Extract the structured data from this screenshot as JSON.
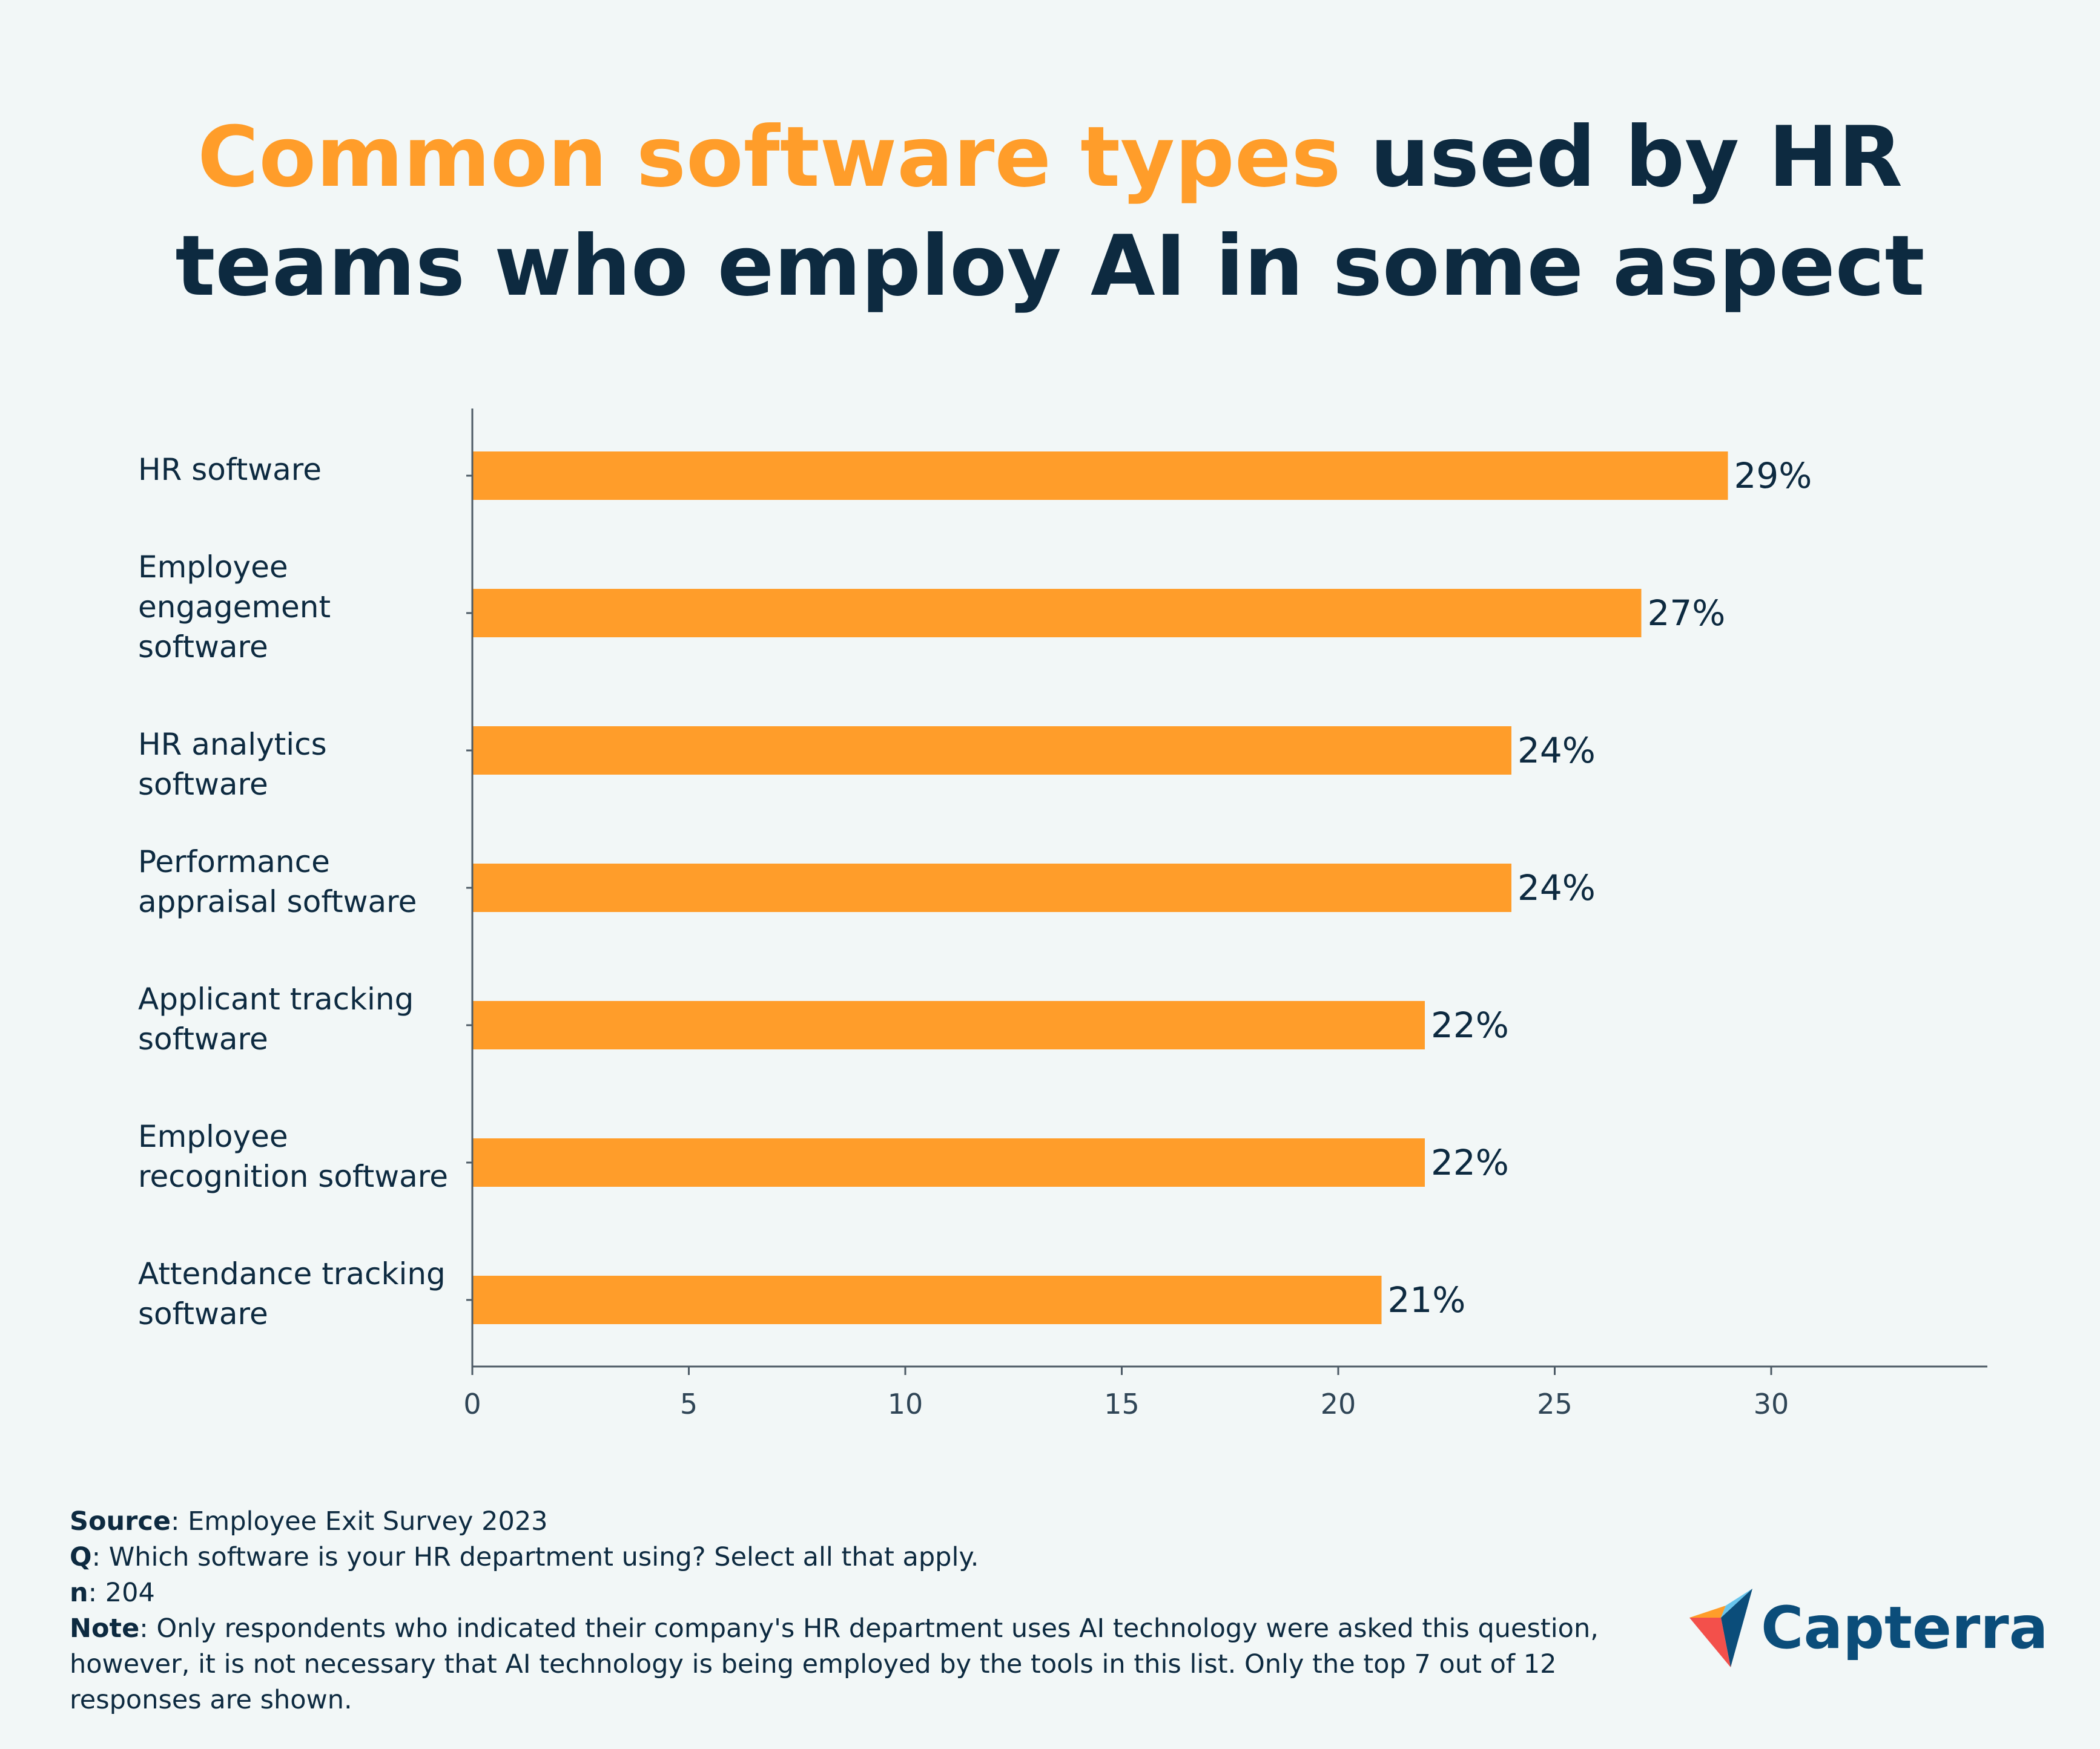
{
  "title": {
    "accent": "Common software types",
    "line1_rest": " used by HR",
    "line2": "teams who employ AI in some aspect"
  },
  "chart_data": {
    "type": "bar",
    "orientation": "horizontal",
    "categories": [
      "HR software",
      "Employee engagement software",
      "HR analytics software",
      "Performance appraisal software",
      "Applicant tracking software",
      "Employee recognition software",
      "Attendance tracking software"
    ],
    "values": [
      29,
      27,
      24,
      24,
      22,
      22,
      21
    ],
    "value_labels": [
      "29%",
      "27%",
      "24%",
      "24%",
      "22%",
      "22%",
      "21%"
    ],
    "xlim": [
      0,
      35
    ],
    "xticks": [
      0,
      5,
      10,
      15,
      20,
      25,
      30
    ],
    "xtick_labels": [
      "0",
      "5",
      "10",
      "15",
      "20",
      "25",
      "30"
    ],
    "bar_color": "#ff9d2a",
    "grid": false
  },
  "labels": [
    [
      "HR software"
    ],
    [
      "Employee",
      "engagement",
      "software"
    ],
    [
      "HR analytics software"
    ],
    [
      "Performance",
      "appraisal software"
    ],
    [
      "Applicant tracking",
      "software"
    ],
    [
      "Employee",
      "recognition software"
    ],
    [
      "Attendance tracking",
      "software"
    ]
  ],
  "footer": {
    "source_label": "Source",
    "source_text": ": Employee Exit Survey 2023",
    "q_label": "Q",
    "q_text": ": Which software is your HR department using? Select all that apply.",
    "n_label": "n",
    "n_text": ": 204",
    "note_label": "Note",
    "note_text": ": Only respondents who indicated their company's HR department uses AI technology were asked this question, however, it is not necessary that AI technology is being employed by the tools in this list. Only the top 7 out of 12 responses are shown."
  },
  "logo": {
    "text": "Capterra"
  },
  "colors": {
    "accent": "#ff9d2a",
    "navy": "#0d2a40",
    "background": "#f2f7f7",
    "logo_blue": "#0b4d7a"
  }
}
